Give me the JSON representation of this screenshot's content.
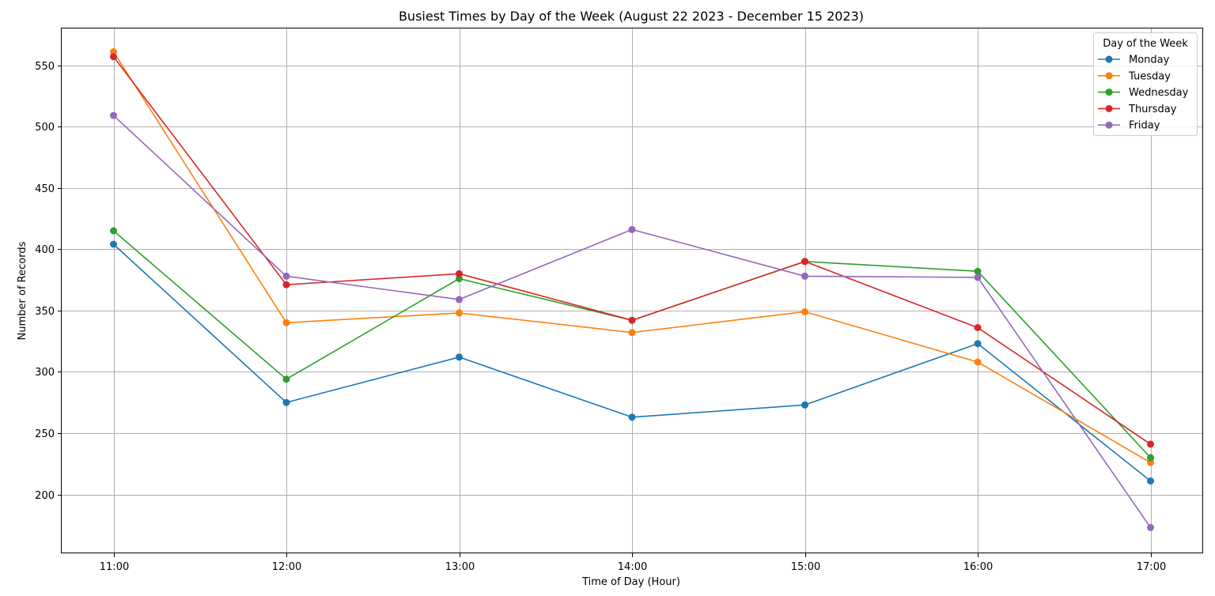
{
  "chart_data": {
    "type": "line",
    "title": "Busiest Times by Day of the Week (August 22 2023 - December 15 2023)",
    "xlabel": "Time of Day (Hour)",
    "ylabel": "Number of Records",
    "categories": [
      "11:00",
      "12:00",
      "13:00",
      "14:00",
      "15:00",
      "16:00",
      "17:00"
    ],
    "yticks": [
      200,
      250,
      300,
      350,
      400,
      450,
      500,
      550
    ],
    "ylim": [
      152,
      580
    ],
    "grid": true,
    "legend": {
      "title": "Day of the Week",
      "placement": "top-right"
    },
    "series": [
      {
        "name": "Monday",
        "color": "#1f77b4",
        "values": [
          404,
          275,
          312,
          263,
          273,
          323,
          211
        ]
      },
      {
        "name": "Tuesday",
        "color": "#ff7f0e",
        "values": [
          561,
          340,
          348,
          332,
          349,
          308,
          226
        ]
      },
      {
        "name": "Wednesday",
        "color": "#2ca02c",
        "values": [
          415,
          294,
          376,
          342,
          390,
          382,
          230
        ]
      },
      {
        "name": "Thursday",
        "color": "#d62728",
        "values": [
          557,
          371,
          380,
          342,
          390,
          336,
          241
        ]
      },
      {
        "name": "Friday",
        "color": "#9467bd",
        "values": [
          509,
          378,
          359,
          416,
          378,
          377,
          173
        ]
      }
    ]
  }
}
